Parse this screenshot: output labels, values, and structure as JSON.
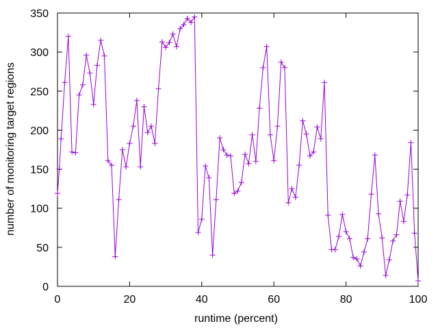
{
  "chart_data": {
    "type": "line",
    "title": "",
    "xlabel": "runtime (percent)",
    "ylabel": "number of monitoring target regions",
    "xlim": [
      0,
      100
    ],
    "ylim": [
      0,
      350
    ],
    "xticks": [
      0,
      20,
      40,
      60,
      80,
      100
    ],
    "yticks": [
      0,
      50,
      100,
      150,
      200,
      250,
      300,
      350
    ],
    "grid": false,
    "legend": "none",
    "marker": "plus",
    "line_color": "#9400d3",
    "series": [
      {
        "x": [
          0,
          0.5,
          1,
          2,
          3,
          4,
          5,
          6,
          7,
          8,
          9,
          10,
          11,
          12,
          13,
          14,
          15,
          16,
          17,
          18,
          19,
          20,
          21,
          22,
          23,
          24,
          25,
          26,
          27,
          28,
          29,
          30,
          31,
          32,
          33,
          34,
          35,
          36,
          37,
          38,
          39,
          40,
          41,
          42,
          43,
          44,
          45,
          46,
          47,
          48,
          49,
          50,
          51,
          52,
          53,
          54,
          55,
          56,
          57,
          58,
          59,
          60,
          61,
          62,
          63,
          64,
          65,
          66,
          67,
          68,
          69,
          70,
          71,
          72,
          73,
          74,
          75,
          76,
          77,
          78,
          79,
          80,
          81,
          82,
          83,
          84,
          85,
          86,
          87,
          88,
          89,
          90,
          91,
          92,
          93,
          94,
          95,
          96,
          97,
          98,
          99,
          100
        ],
        "y": [
          119,
          150,
          189,
          261,
          320,
          172,
          171,
          245,
          258,
          296,
          273,
          233,
          283,
          315,
          295,
          161,
          155,
          38,
          111,
          175,
          153,
          183,
          205,
          238,
          153,
          230,
          197,
          205,
          183,
          253,
          313,
          306,
          312,
          323,
          307,
          330,
          335,
          343,
          338,
          345,
          69,
          86,
          154,
          139,
          40,
          111,
          190,
          175,
          168,
          167,
          119,
          122,
          133,
          169,
          157,
          194,
          160,
          228,
          280,
          307,
          194,
          161,
          205,
          287,
          280,
          107,
          125,
          114,
          155,
          212,
          195,
          167,
          172,
          204,
          189,
          261,
          91,
          47,
          47,
          64,
          92,
          70,
          61,
          37,
          35,
          26,
          44,
          61,
          118,
          168,
          93,
          62,
          14,
          34,
          58,
          66,
          109,
          83,
          117,
          184,
          68,
          7
        ]
      }
    ]
  }
}
